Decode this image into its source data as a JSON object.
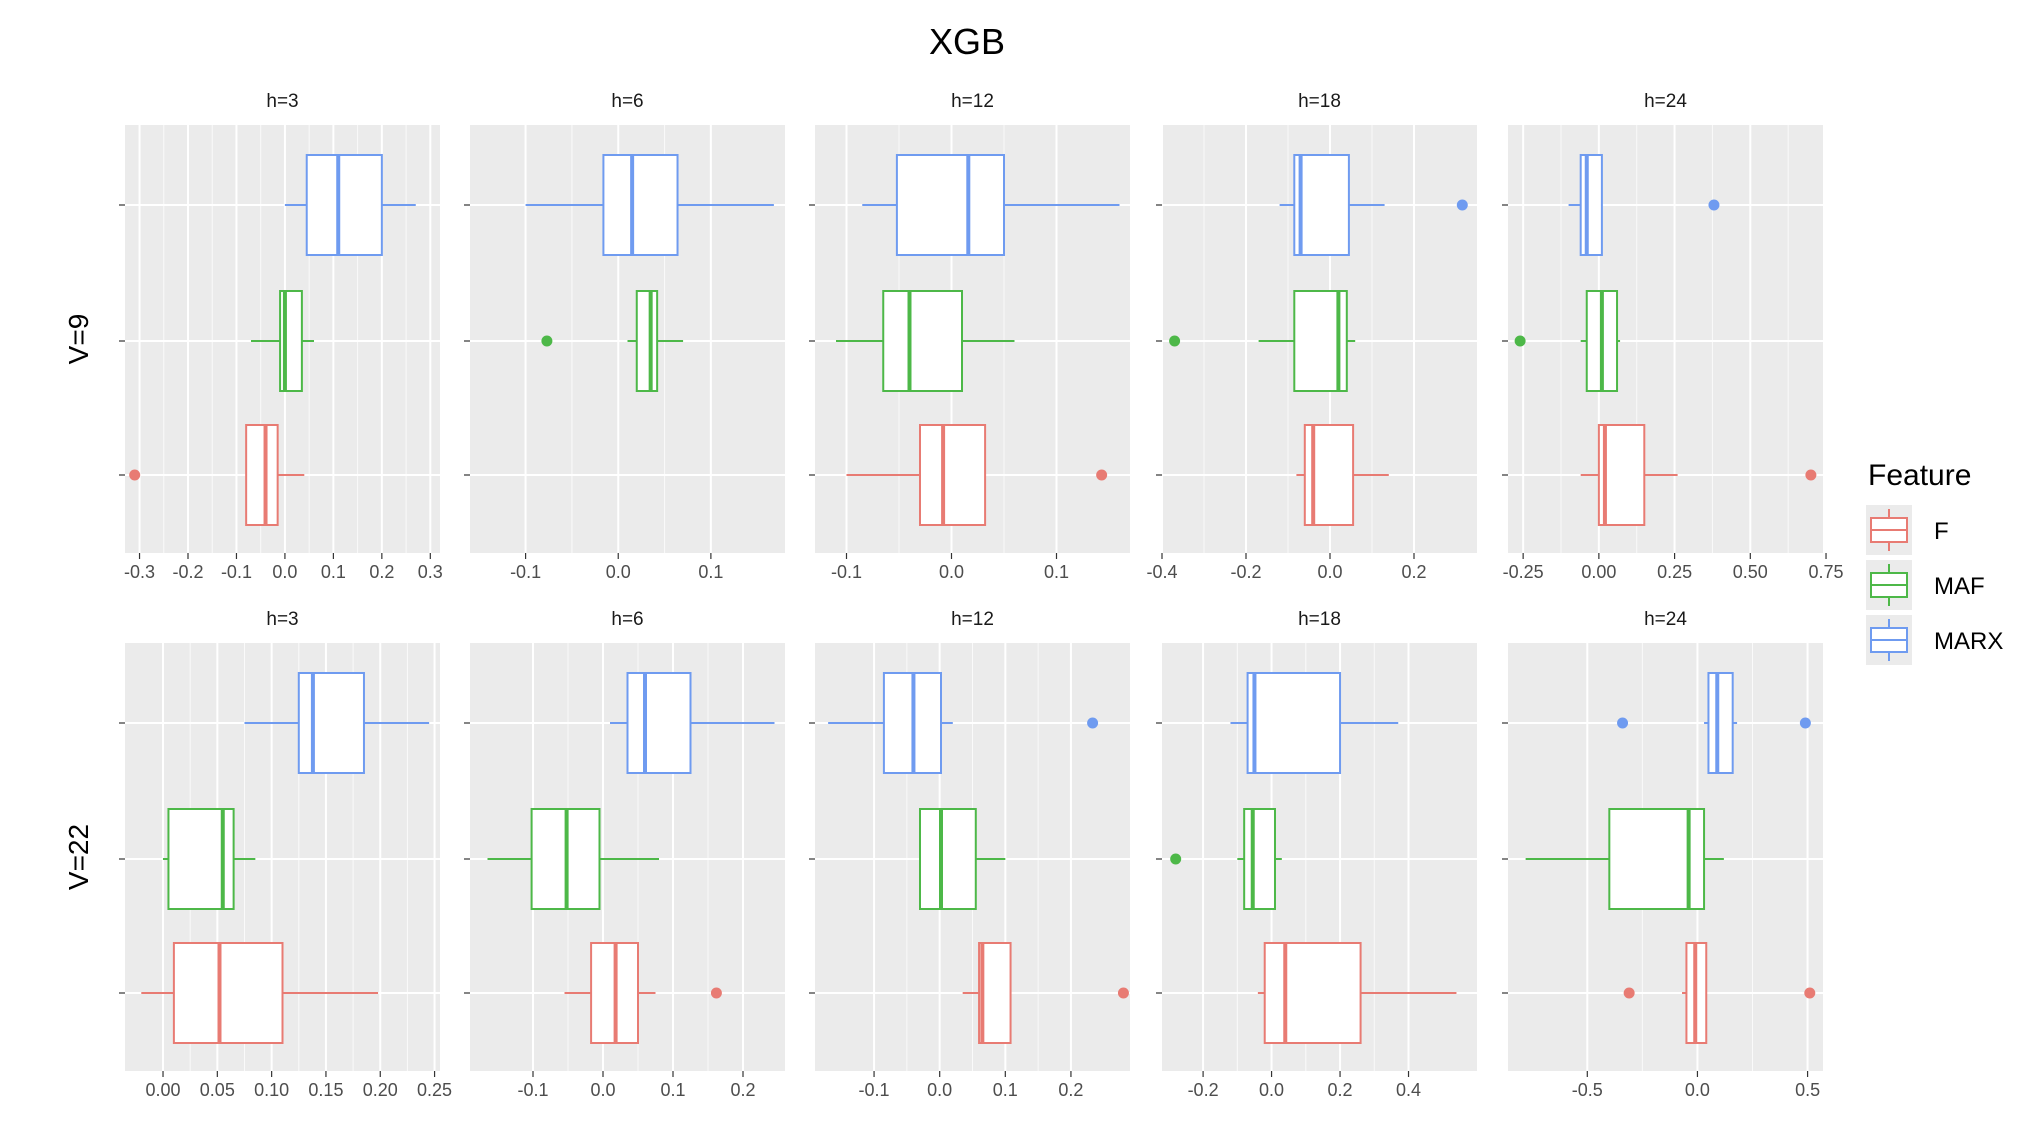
{
  "chart_data": {
    "type": "boxplot",
    "title": "XGB",
    "legend": {
      "title": "Feature",
      "position": "right",
      "entries": [
        {
          "name": "F",
          "color": "#E87B73"
        },
        {
          "name": "MAF",
          "color": "#4DB848"
        },
        {
          "name": "MARX",
          "color": "#6F9BF0"
        }
      ]
    },
    "colors": {
      "panel_bg": "#EBEBEB",
      "grid": "#FFFFFF",
      "box_fill": "#FFFFFF"
    },
    "rows": [
      {
        "label": "V=9",
        "panels": [
          {
            "strip": "h=3",
            "xlim": [
              -0.33,
              0.32
            ],
            "ticks": [
              -0.3,
              -0.2,
              -0.1,
              0.0,
              0.1,
              0.2,
              0.3
            ],
            "tick_labels": [
              "-0.3",
              "-0.2",
              "-0.1",
              "0.0",
              "0.1",
              "0.2",
              "0.3"
            ],
            "boxes": [
              {
                "feature": "MARX",
                "whisker_low": 0.0,
                "q1": 0.045,
                "median": 0.11,
                "q3": 0.2,
                "whisker_high": 0.27,
                "outliers": []
              },
              {
                "feature": "MAF",
                "whisker_low": -0.07,
                "q1": -0.01,
                "median": 0.0,
                "q3": 0.035,
                "whisker_high": 0.06,
                "outliers": []
              },
              {
                "feature": "F",
                "whisker_low": -0.08,
                "q1": -0.08,
                "median": -0.04,
                "q3": -0.015,
                "whisker_high": 0.04,
                "outliers": [
                  -0.31
                ]
              }
            ]
          },
          {
            "strip": "h=6",
            "xlim": [
              -0.16,
              0.18
            ],
            "ticks": [
              -0.1,
              0.0,
              0.1
            ],
            "tick_labels": [
              "-0.1",
              "0.0",
              "0.1"
            ],
            "boxes": [
              {
                "feature": "MARX",
                "whisker_low": -0.1,
                "q1": -0.016,
                "median": 0.015,
                "q3": 0.064,
                "whisker_high": 0.168,
                "outliers": []
              },
              {
                "feature": "MAF",
                "whisker_low": 0.01,
                "q1": 0.02,
                "median": 0.035,
                "q3": 0.042,
                "whisker_high": 0.07,
                "outliers": [
                  -0.077
                ]
              }
            ]
          },
          {
            "strip": "h=12",
            "xlim": [
              -0.13,
              0.17
            ],
            "ticks": [
              -0.1,
              0.0,
              0.1
            ],
            "tick_labels": [
              "-0.1",
              "0.0",
              "0.1"
            ],
            "boxes": [
              {
                "feature": "MARX",
                "whisker_low": -0.085,
                "q1": -0.052,
                "median": 0.016,
                "q3": 0.05,
                "whisker_high": 0.16,
                "outliers": []
              },
              {
                "feature": "MAF",
                "whisker_low": -0.11,
                "q1": -0.065,
                "median": -0.04,
                "q3": 0.01,
                "whisker_high": 0.06,
                "outliers": []
              },
              {
                "feature": "F",
                "whisker_low": -0.1,
                "q1": -0.03,
                "median": -0.008,
                "q3": 0.032,
                "whisker_high": 0.032,
                "outliers": [
                  0.143
                ]
              }
            ]
          },
          {
            "strip": "h=18",
            "xlim": [
              -0.4,
              0.35
            ],
            "ticks": [
              -0.4,
              -0.2,
              0.0,
              0.2
            ],
            "tick_labels": [
              "-0.4",
              "-0.2",
              "0.0",
              "0.2"
            ],
            "boxes": [
              {
                "feature": "MARX",
                "whisker_low": -0.12,
                "q1": -0.085,
                "median": -0.07,
                "q3": 0.045,
                "whisker_high": 0.13,
                "outliers": [
                  0.315
                ]
              },
              {
                "feature": "MAF",
                "whisker_low": -0.17,
                "q1": -0.085,
                "median": 0.02,
                "q3": 0.04,
                "whisker_high": 0.06,
                "outliers": [
                  -0.37
                ]
              },
              {
                "feature": "F",
                "whisker_low": -0.08,
                "q1": -0.06,
                "median": -0.04,
                "q3": 0.055,
                "whisker_high": 0.14,
                "outliers": []
              }
            ]
          },
          {
            "strip": "h=24",
            "xlim": [
              -0.3,
              0.74
            ],
            "ticks": [
              -0.25,
              0.0,
              0.25,
              0.5,
              0.75
            ],
            "tick_labels": [
              "-0.25",
              "0.00",
              "0.25",
              "0.50",
              "0.75"
            ],
            "boxes": [
              {
                "feature": "MARX",
                "whisker_low": -0.1,
                "q1": -0.06,
                "median": -0.04,
                "q3": 0.01,
                "whisker_high": 0.01,
                "outliers": [
                  0.38
                ]
              },
              {
                "feature": "MAF",
                "whisker_low": -0.06,
                "q1": -0.04,
                "median": 0.01,
                "q3": 0.06,
                "whisker_high": 0.07,
                "outliers": [
                  -0.26
                ]
              },
              {
                "feature": "F",
                "whisker_low": -0.06,
                "q1": 0.0,
                "median": 0.02,
                "q3": 0.15,
                "whisker_high": 0.26,
                "outliers": [
                  0.7
                ]
              }
            ]
          }
        ]
      },
      {
        "label": "V=22",
        "panels": [
          {
            "strip": "h=3",
            "xlim": [
              -0.035,
              0.255
            ],
            "ticks": [
              0.0,
              0.05,
              0.1,
              0.15,
              0.2,
              0.25
            ],
            "tick_labels": [
              "0.00",
              "0.05",
              "0.10",
              "0.15",
              "0.20",
              "0.25"
            ],
            "boxes": [
              {
                "feature": "MARX",
                "whisker_low": 0.075,
                "q1": 0.125,
                "median": 0.138,
                "q3": 0.185,
                "whisker_high": 0.245,
                "outliers": []
              },
              {
                "feature": "MAF",
                "whisker_low": 0.0,
                "q1": 0.005,
                "median": 0.055,
                "q3": 0.065,
                "whisker_high": 0.085,
                "outliers": []
              },
              {
                "feature": "F",
                "whisker_low": -0.02,
                "q1": 0.01,
                "median": 0.052,
                "q3": 0.11,
                "whisker_high": 0.198,
                "outliers": []
              }
            ]
          },
          {
            "strip": "h=6",
            "xlim": [
              -0.19,
              0.26
            ],
            "ticks": [
              -0.1,
              0.0,
              0.1,
              0.2
            ],
            "tick_labels": [
              "-0.1",
              "0.0",
              "0.1",
              "0.2"
            ],
            "boxes": [
              {
                "feature": "MARX",
                "whisker_low": 0.01,
                "q1": 0.035,
                "median": 0.06,
                "q3": 0.125,
                "whisker_high": 0.245,
                "outliers": []
              },
              {
                "feature": "MAF",
                "whisker_low": -0.165,
                "q1": -0.102,
                "median": -0.052,
                "q3": -0.005,
                "whisker_high": 0.08,
                "outliers": []
              },
              {
                "feature": "F",
                "whisker_low": -0.055,
                "q1": -0.017,
                "median": 0.018,
                "q3": 0.05,
                "whisker_high": 0.075,
                "outliers": [
                  0.162
                ]
              }
            ]
          },
          {
            "strip": "h=12",
            "xlim": [
              -0.19,
              0.29
            ],
            "ticks": [
              -0.1,
              0.0,
              0.1,
              0.2
            ],
            "tick_labels": [
              "-0.1",
              "0.0",
              "0.1",
              "0.2"
            ],
            "boxes": [
              {
                "feature": "MARX",
                "whisker_low": -0.17,
                "q1": -0.085,
                "median": -0.04,
                "q3": 0.002,
                "whisker_high": 0.02,
                "outliers": [
                  0.233
                ]
              },
              {
                "feature": "MAF",
                "whisker_low": -0.03,
                "q1": -0.03,
                "median": 0.002,
                "q3": 0.055,
                "whisker_high": 0.1,
                "outliers": []
              },
              {
                "feature": "F",
                "whisker_low": 0.035,
                "q1": 0.06,
                "median": 0.065,
                "q3": 0.108,
                "whisker_high": 0.108,
                "outliers": [
                  0.28
                ]
              }
            ]
          },
          {
            "strip": "h=18",
            "xlim": [
              -0.32,
              0.6
            ],
            "ticks": [
              -0.2,
              0.0,
              0.2,
              0.4
            ],
            "tick_labels": [
              "-0.2",
              "0.0",
              "0.2",
              "0.4"
            ],
            "boxes": [
              {
                "feature": "MARX",
                "whisker_low": -0.12,
                "q1": -0.07,
                "median": -0.05,
                "q3": 0.2,
                "whisker_high": 0.37,
                "outliers": []
              },
              {
                "feature": "MAF",
                "whisker_low": -0.1,
                "q1": -0.08,
                "median": -0.055,
                "q3": 0.01,
                "whisker_high": 0.03,
                "outliers": [
                  -0.28
                ]
              },
              {
                "feature": "F",
                "whisker_low": -0.04,
                "q1": -0.02,
                "median": 0.04,
                "q3": 0.26,
                "whisker_high": 0.54,
                "outliers": []
              }
            ]
          },
          {
            "strip": "h=24",
            "xlim": [
              -0.86,
              0.57
            ],
            "ticks": [
              -0.5,
              0.0,
              0.5
            ],
            "tick_labels": [
              "-0.5",
              "0.0",
              "0.5"
            ],
            "boxes": [
              {
                "feature": "MARX",
                "whisker_low": 0.03,
                "q1": 0.05,
                "median": 0.09,
                "q3": 0.16,
                "whisker_high": 0.18,
                "outliers": [
                  -0.34,
                  0.49
                ]
              },
              {
                "feature": "MAF",
                "whisker_low": -0.78,
                "q1": -0.4,
                "median": -0.04,
                "q3": 0.03,
                "whisker_high": 0.12,
                "outliers": []
              },
              {
                "feature": "F",
                "whisker_low": -0.07,
                "q1": -0.05,
                "median": -0.01,
                "q3": 0.04,
                "whisker_high": 0.04,
                "outliers": [
                  -0.31,
                  0.51
                ]
              }
            ]
          }
        ]
      }
    ]
  }
}
